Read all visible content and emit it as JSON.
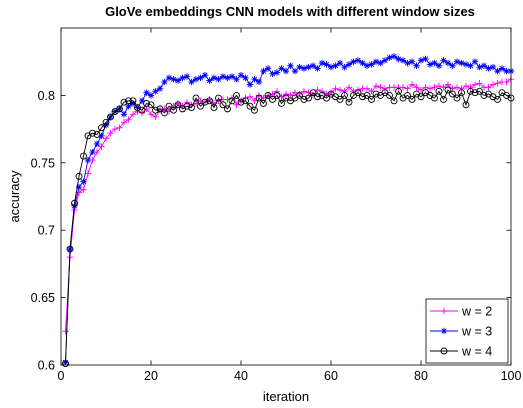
{
  "chart_data": {
    "type": "line",
    "title": "GloVe embeddings CNN models with different window sizes",
    "xlabel": "iteration",
    "ylabel": "accuracy",
    "xlim": [
      0,
      100
    ],
    "ylim": [
      0.6,
      0.85
    ],
    "xticks": [
      0,
      20,
      40,
      60,
      80,
      100
    ],
    "yticks": [
      0.6,
      0.65,
      0.7,
      0.75,
      0.8
    ],
    "xtick_labels": [
      "0",
      "20",
      "40",
      "60",
      "80",
      "100"
    ],
    "ytick_labels": [
      "0.6",
      "0.65",
      "0.7",
      "0.75",
      "0.8"
    ],
    "grid": false,
    "legend_position": "bottom-right",
    "series": [
      {
        "name": "w = 2",
        "color": "#ff00ff",
        "marker": "plus",
        "x": [
          1,
          2,
          3,
          4,
          5,
          6,
          7,
          8,
          9,
          10,
          11,
          12,
          13,
          14,
          15,
          16,
          17,
          18,
          19,
          20,
          21,
          22,
          23,
          24,
          25,
          26,
          27,
          28,
          29,
          30,
          31,
          32,
          33,
          34,
          35,
          36,
          37,
          38,
          39,
          40,
          41,
          42,
          43,
          44,
          45,
          46,
          47,
          48,
          49,
          50,
          51,
          52,
          53,
          54,
          55,
          56,
          57,
          58,
          59,
          60,
          61,
          62,
          63,
          64,
          65,
          66,
          67,
          68,
          69,
          70,
          71,
          72,
          73,
          74,
          75,
          76,
          77,
          78,
          79,
          80,
          81,
          82,
          83,
          84,
          85,
          86,
          87,
          88,
          89,
          90,
          91,
          92,
          93,
          94,
          95,
          96,
          97,
          98,
          99,
          100
        ],
        "values": [
          0.625,
          0.68,
          0.715,
          0.728,
          0.73,
          0.742,
          0.752,
          0.758,
          0.762,
          0.768,
          0.772,
          0.775,
          0.776,
          0.78,
          0.782,
          0.786,
          0.788,
          0.787,
          0.79,
          0.786,
          0.784,
          0.789,
          0.79,
          0.788,
          0.792,
          0.794,
          0.792,
          0.795,
          0.793,
          0.794,
          0.796,
          0.795,
          0.797,
          0.794,
          0.796,
          0.797,
          0.797,
          0.798,
          0.793,
          0.796,
          0.798,
          0.799,
          0.796,
          0.8,
          0.798,
          0.8,
          0.801,
          0.803,
          0.799,
          0.801,
          0.8,
          0.802,
          0.801,
          0.803,
          0.802,
          0.8,
          0.804,
          0.803,
          0.801,
          0.802,
          0.805,
          0.804,
          0.803,
          0.806,
          0.803,
          0.804,
          0.805,
          0.805,
          0.803,
          0.807,
          0.806,
          0.805,
          0.806,
          0.806,
          0.806,
          0.806,
          0.805,
          0.808,
          0.806,
          0.804,
          0.806,
          0.805,
          0.806,
          0.807,
          0.806,
          0.808,
          0.805,
          0.806,
          0.805,
          0.807,
          0.806,
          0.808,
          0.809,
          0.806,
          0.806,
          0.808,
          0.809,
          0.81,
          0.81,
          0.812
        ]
      },
      {
        "name": "w = 3",
        "color": "#0000ff",
        "marker": "star",
        "x": [
          1,
          2,
          3,
          4,
          5,
          6,
          7,
          8,
          9,
          10,
          11,
          12,
          13,
          14,
          15,
          16,
          17,
          18,
          19,
          20,
          21,
          22,
          23,
          24,
          25,
          26,
          27,
          28,
          29,
          30,
          31,
          32,
          33,
          34,
          35,
          36,
          37,
          38,
          39,
          40,
          41,
          42,
          43,
          44,
          45,
          46,
          47,
          48,
          49,
          50,
          51,
          52,
          53,
          54,
          55,
          56,
          57,
          58,
          59,
          60,
          61,
          62,
          63,
          64,
          65,
          66,
          67,
          68,
          69,
          70,
          71,
          72,
          73,
          74,
          75,
          76,
          77,
          78,
          79,
          80,
          81,
          82,
          83,
          84,
          85,
          86,
          87,
          88,
          89,
          90,
          91,
          92,
          93,
          94,
          95,
          96,
          97,
          98,
          99,
          100
        ],
        "values": [
          0.602,
          0.686,
          0.718,
          0.732,
          0.736,
          0.752,
          0.758,
          0.764,
          0.77,
          0.778,
          0.784,
          0.788,
          0.79,
          0.786,
          0.792,
          0.794,
          0.791,
          0.796,
          0.802,
          0.8,
          0.803,
          0.805,
          0.81,
          0.813,
          0.812,
          0.811,
          0.813,
          0.814,
          0.81,
          0.812,
          0.813,
          0.815,
          0.811,
          0.813,
          0.812,
          0.814,
          0.813,
          0.814,
          0.812,
          0.815,
          0.813,
          0.808,
          0.812,
          0.81,
          0.818,
          0.82,
          0.816,
          0.817,
          0.82,
          0.818,
          0.822,
          0.818,
          0.821,
          0.82,
          0.821,
          0.822,
          0.82,
          0.824,
          0.823,
          0.821,
          0.822,
          0.824,
          0.821,
          0.823,
          0.825,
          0.826,
          0.824,
          0.822,
          0.823,
          0.825,
          0.824,
          0.826,
          0.828,
          0.829,
          0.827,
          0.826,
          0.824,
          0.825,
          0.822,
          0.826,
          0.827,
          0.823,
          0.824,
          0.822,
          0.826,
          0.824,
          0.822,
          0.825,
          0.824,
          0.823,
          0.822,
          0.825,
          0.821,
          0.822,
          0.82,
          0.821,
          0.818,
          0.82,
          0.818,
          0.818
        ]
      },
      {
        "name": "w = 4",
        "color": "#000000",
        "marker": "circle",
        "x": [
          1,
          2,
          3,
          4,
          5,
          6,
          7,
          8,
          9,
          10,
          11,
          12,
          13,
          14,
          15,
          16,
          17,
          18,
          19,
          20,
          21,
          22,
          23,
          24,
          25,
          26,
          27,
          28,
          29,
          30,
          31,
          32,
          33,
          34,
          35,
          36,
          37,
          38,
          39,
          40,
          41,
          42,
          43,
          44,
          45,
          46,
          47,
          48,
          49,
          50,
          51,
          52,
          53,
          54,
          55,
          56,
          57,
          58,
          59,
          60,
          61,
          62,
          63,
          64,
          65,
          66,
          67,
          68,
          69,
          70,
          71,
          72,
          73,
          74,
          75,
          76,
          77,
          78,
          79,
          80,
          81,
          82,
          83,
          84,
          85,
          86,
          87,
          88,
          89,
          90,
          91,
          92,
          93,
          94,
          95,
          96,
          97,
          98,
          99,
          100
        ],
        "values": [
          0.601,
          0.686,
          0.72,
          0.74,
          0.755,
          0.77,
          0.772,
          0.771,
          0.776,
          0.78,
          0.784,
          0.788,
          0.79,
          0.795,
          0.796,
          0.796,
          0.791,
          0.789,
          0.794,
          0.793,
          0.789,
          0.79,
          0.787,
          0.792,
          0.789,
          0.793,
          0.79,
          0.792,
          0.791,
          0.798,
          0.792,
          0.795,
          0.796,
          0.791,
          0.798,
          0.793,
          0.79,
          0.796,
          0.8,
          0.795,
          0.796,
          0.792,
          0.789,
          0.798,
          0.794,
          0.8,
          0.797,
          0.8,
          0.794,
          0.798,
          0.796,
          0.798,
          0.8,
          0.797,
          0.798,
          0.802,
          0.799,
          0.8,
          0.798,
          0.801,
          0.799,
          0.797,
          0.8,
          0.795,
          0.8,
          0.802,
          0.799,
          0.8,
          0.797,
          0.801,
          0.8,
          0.802,
          0.8,
          0.796,
          0.803,
          0.798,
          0.8,
          0.797,
          0.801,
          0.799,
          0.802,
          0.8,
          0.798,
          0.803,
          0.797,
          0.804,
          0.801,
          0.798,
          0.802,
          0.793,
          0.803,
          0.802,
          0.803,
          0.8,
          0.801,
          0.799,
          0.797,
          0.802,
          0.8,
          0.798
        ]
      }
    ]
  }
}
